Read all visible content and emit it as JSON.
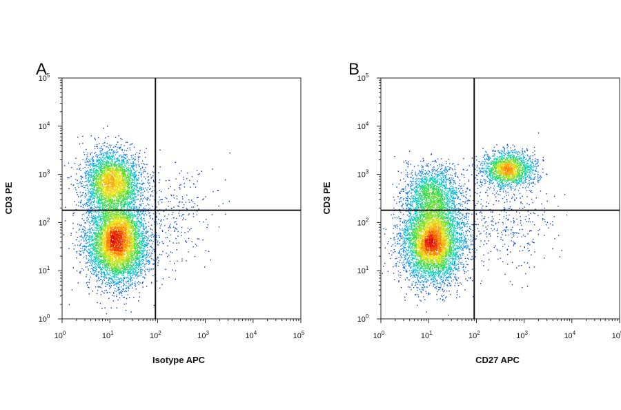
{
  "chart_data": [
    {
      "type": "scatter",
      "panel": "A",
      "xlabel": "Isotype APC",
      "ylabel": "CD3 PE",
      "xscale": "log",
      "yscale": "log",
      "xlim": [
        1,
        100000
      ],
      "ylim": [
        1,
        100000
      ],
      "x_ticks": [
        "10^0",
        "10^1",
        "10^2",
        "10^3",
        "10^4",
        "10^5"
      ],
      "y_ticks": [
        "10^0",
        "10^1",
        "10^2",
        "10^3",
        "10^4",
        "10^5"
      ],
      "gate": {
        "x": 90,
        "y": 180
      },
      "color_map": "density (blue-green-yellow-red)",
      "populations": [
        {
          "x": 14,
          "y": 40,
          "spread_x": 0.32,
          "spread_y": 0.42,
          "weight": 0.62
        },
        {
          "x": 11,
          "y": 700,
          "spread_x": 0.3,
          "spread_y": 0.32,
          "weight": 0.35
        },
        {
          "x": 200,
          "y": 150,
          "spread_x": 0.45,
          "spread_y": 0.5,
          "weight": 0.03
        }
      ]
    },
    {
      "type": "scatter",
      "panel": "B",
      "xlabel": "CD27 APC",
      "ylabel": "CD3 PE",
      "xscale": "log",
      "yscale": "log",
      "xlim": [
        1,
        100000
      ],
      "ylim": [
        1,
        100000
      ],
      "x_ticks": [
        "10^0",
        "10^1",
        "10^2",
        "10^3",
        "10^4",
        "10^5"
      ],
      "y_ticks": [
        "10^0",
        "10^1",
        "10^2",
        "10^3",
        "10^4",
        "10^5"
      ],
      "gate": {
        "x": 90,
        "y": 180
      },
      "color_map": "density (blue-green-yellow-red)",
      "populations": [
        {
          "x": 12,
          "y": 40,
          "spread_x": 0.32,
          "spread_y": 0.42,
          "weight": 0.58
        },
        {
          "x": 12,
          "y": 400,
          "spread_x": 0.3,
          "spread_y": 0.3,
          "weight": 0.18
        },
        {
          "x": 450,
          "y": 1300,
          "spread_x": 0.28,
          "spread_y": 0.18,
          "weight": 0.2
        },
        {
          "x": 400,
          "y": 100,
          "spread_x": 0.5,
          "spread_y": 0.5,
          "weight": 0.04
        }
      ]
    }
  ]
}
